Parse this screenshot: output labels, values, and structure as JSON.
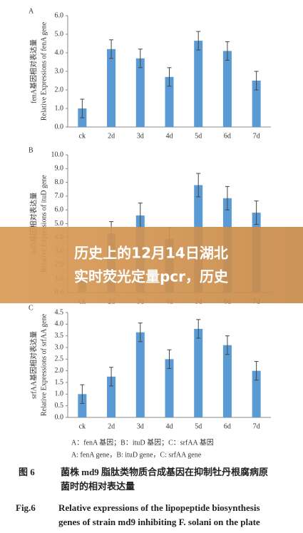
{
  "chart_data": [
    {
      "type": "bar",
      "label": "A",
      "ylabel": [
        "fenA基因相对表达量",
        "Relative Expressions of fenA gene"
      ],
      "categories": [
        "ck",
        "2d",
        "3d",
        "4d",
        "5d",
        "6d",
        "7d"
      ],
      "values": [
        1.0,
        4.2,
        3.7,
        2.7,
        4.65,
        4.1,
        2.5
      ],
      "errors": [
        0.5,
        0.5,
        0.5,
        0.5,
        0.5,
        0.5,
        0.5
      ],
      "color": "#5b9bd5",
      "ylim": [
        0,
        6
      ],
      "yticks": [
        {
          "value": 0,
          "label": "0.0"
        },
        {
          "value": 1,
          "label": "1.0"
        },
        {
          "value": 2,
          "label": "2.0"
        },
        {
          "value": 3,
          "label": "3.0"
        },
        {
          "value": 4,
          "label": "4.0"
        },
        {
          "value": 5,
          "label": "5.0"
        },
        {
          "value": 6,
          "label": "6.0"
        }
      ]
    },
    {
      "type": "bar",
      "label": "B",
      "ylabel": [
        "ituD基因相对表达量",
        "Relative Expressions of ituD gene"
      ],
      "categories": [
        "ck",
        "2d",
        "3d",
        "4d",
        "5d",
        "6d",
        "7d"
      ],
      "values": [
        1.0,
        4.3,
        5.6,
        3.9,
        7.8,
        6.85,
        5.8
      ],
      "errors": [
        0.5,
        0.85,
        0.9,
        0.8,
        0.85,
        0.85,
        0.85
      ],
      "color": "#5b9bd5",
      "ylim": [
        0,
        10
      ],
      "yticks": [
        {
          "value": 0,
          "label": "0.0"
        },
        {
          "value": 1,
          "label": "1.0"
        },
        {
          "value": 2,
          "label": "2.0"
        },
        {
          "value": 3,
          "label": "3.0"
        },
        {
          "value": 4,
          "label": "4.0"
        },
        {
          "value": 5,
          "label": "5.0"
        },
        {
          "value": 6,
          "label": "6.0"
        },
        {
          "value": 7,
          "label": "7.0"
        },
        {
          "value": 8,
          "label": "8.0"
        },
        {
          "value": 9,
          "label": "9.0"
        },
        {
          "value": 10,
          "label": "10.0"
        }
      ]
    },
    {
      "type": "bar",
      "label": "C",
      "ylabel": [
        "srfAA基因相对表达量",
        "Relative Expressions of srfAA gene"
      ],
      "categories": [
        "ck",
        "2d",
        "3d",
        "4d",
        "5d",
        "6d",
        "7d"
      ],
      "values": [
        1.0,
        1.75,
        3.65,
        2.5,
        3.8,
        3.1,
        2.0
      ],
      "errors": [
        0.4,
        0.4,
        0.4,
        0.4,
        0.4,
        0.4,
        0.4
      ],
      "color": "#5b9bd5",
      "ylim": [
        0,
        4.5
      ],
      "yticks": [
        {
          "value": 0,
          "label": "0.0"
        },
        0.5,
        {
          "value": 1,
          "label": "1.0"
        },
        1.5,
        {
          "value": 2,
          "label": "2.0"
        },
        2.5,
        {
          "value": 3,
          "label": "3.0"
        },
        3.5,
        {
          "value": 4,
          "label": "4.0"
        },
        4.5
      ]
    }
  ],
  "legend": [
    "A：fenA 基因；B：ituD 基因；C：srfAA 基因",
    "A: fenA gene，B: ituD gene，C: srfAA gene"
  ],
  "caption_cn": [
    "图 6",
    "菌株 md9 脂肽类物质合成基因在抑制牡丹根腐病原",
    "菌时的相对表达量"
  ],
  "caption_en": [
    "Fig.6",
    "Relative expressions of the lipopeptide biosynthesis",
    "genes of strain md9 inhibiting F. solani on the plate"
  ],
  "banner": [
    "历史上的12月14日湖北",
    "实时荧光定量pcr，历史"
  ]
}
